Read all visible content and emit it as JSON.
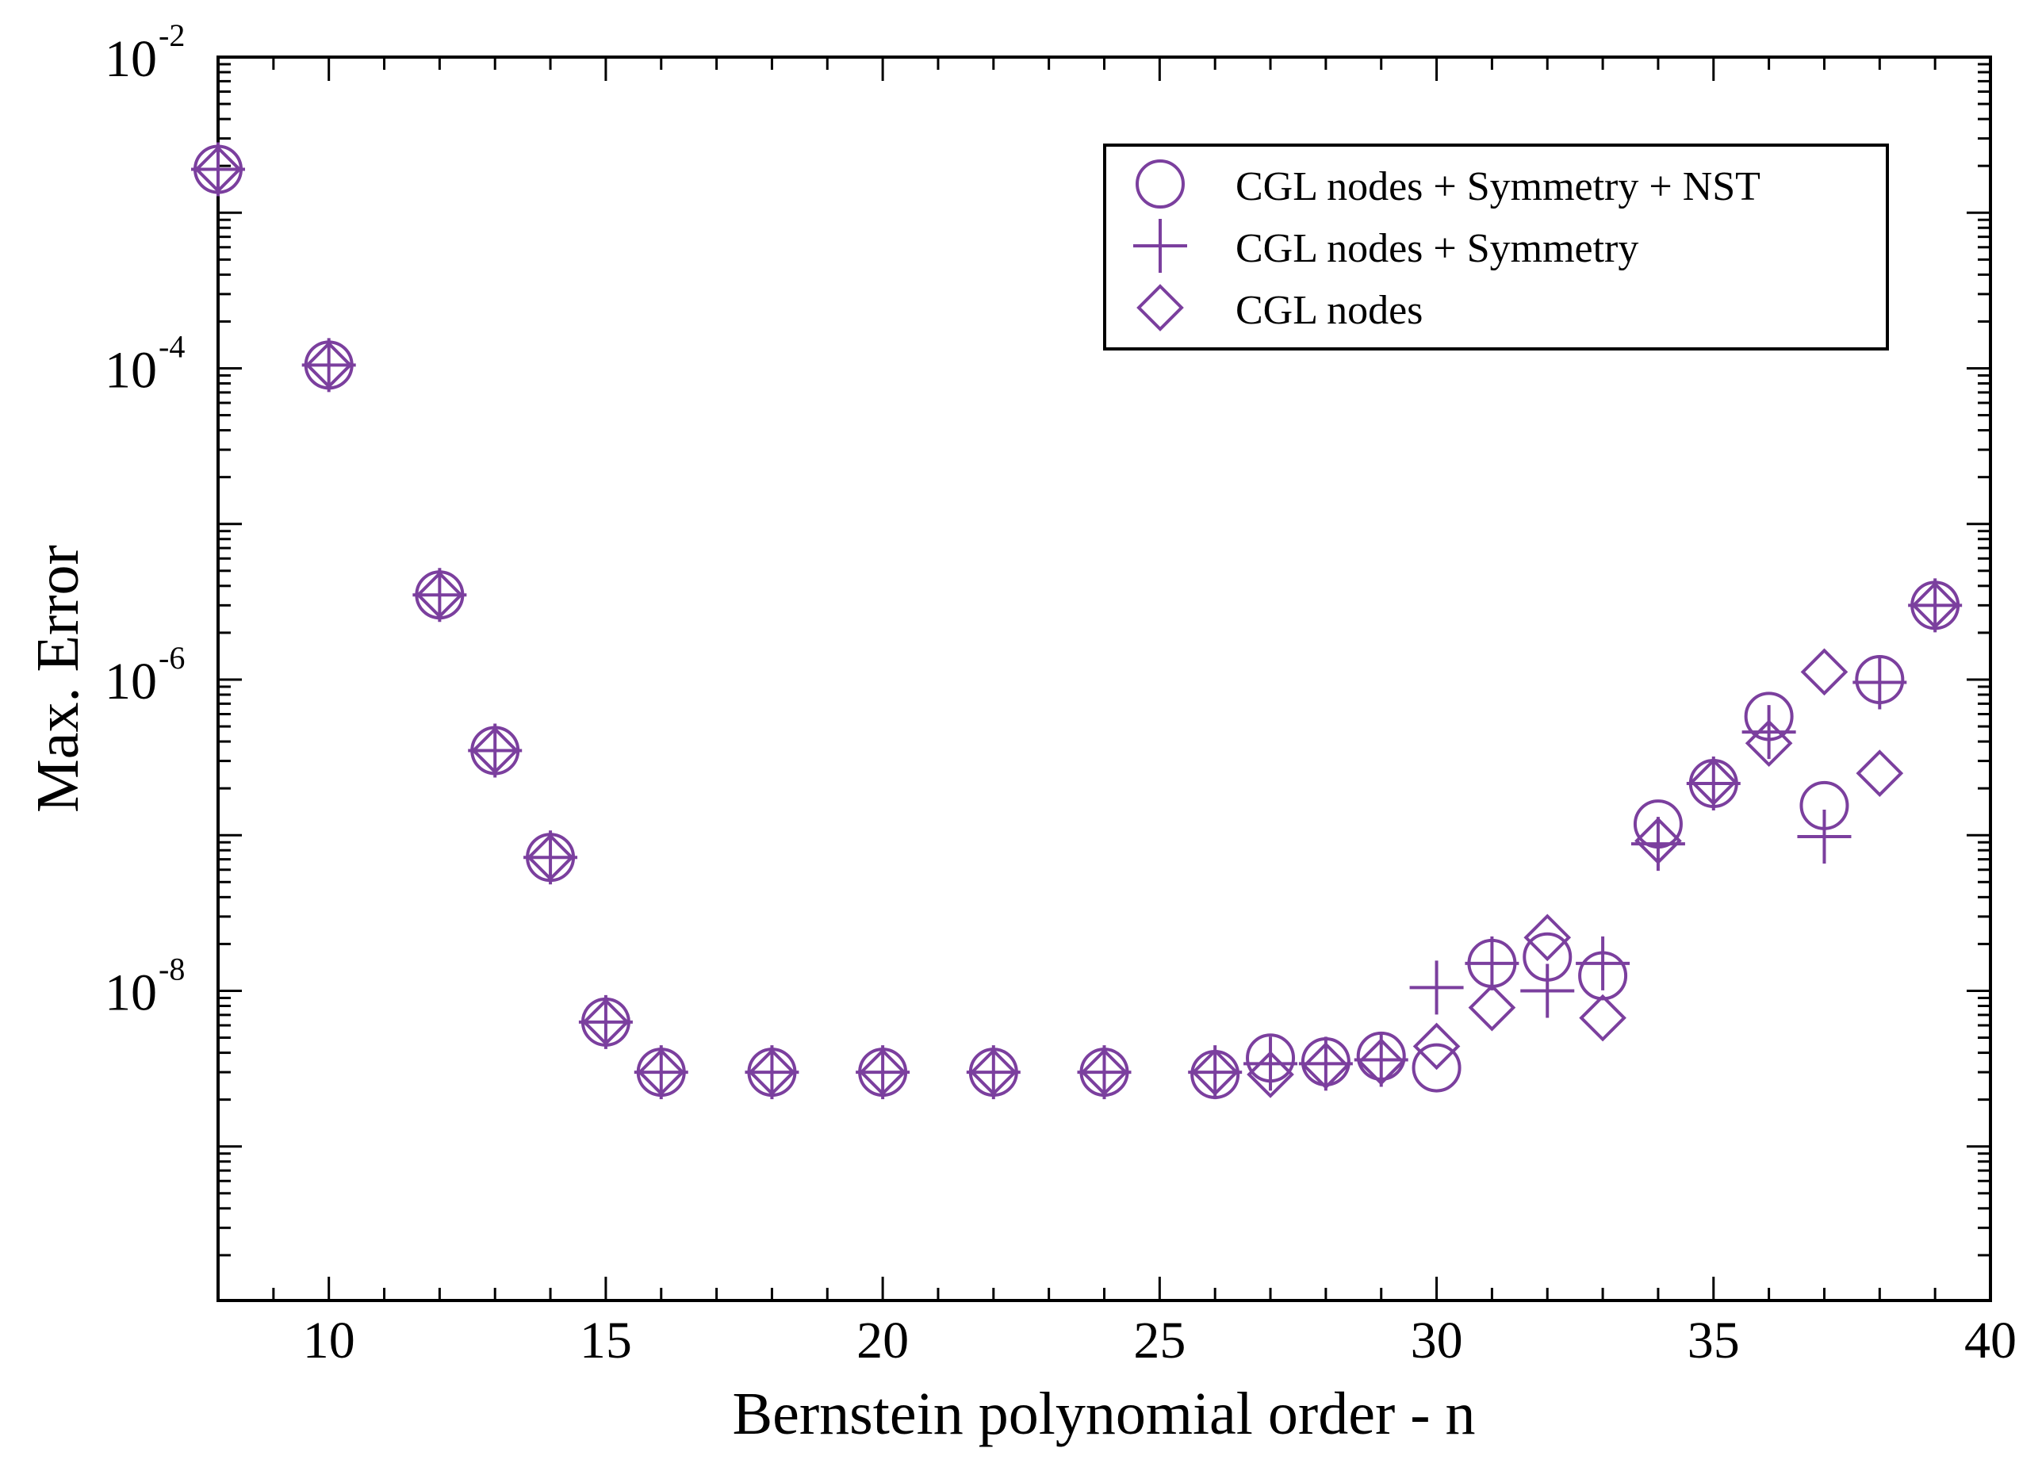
{
  "chart_data": {
    "type": "scatter",
    "title": "",
    "xlabel": "Bernstein polynomial order - n",
    "ylabel": "Max. Error",
    "xlim": [
      8,
      40
    ],
    "ylim_log10": [
      -9.99,
      -2
    ],
    "yscale": "log",
    "x_ticks": [
      10,
      15,
      20,
      25,
      30,
      35,
      40
    ],
    "x_tick_labels": [
      "10",
      "15",
      "20",
      "25",
      "30",
      "35",
      "40"
    ],
    "y_ticks": [
      {
        "base": "10",
        "exp": "-2"
      },
      {
        "base": "10",
        "exp": "-4"
      },
      {
        "base": "10",
        "exp": "-6"
      },
      {
        "base": "10",
        "exp": "-8"
      }
    ],
    "series_color": "#7b3f9e",
    "legend_position": "top-right",
    "series": [
      {
        "name": "CGL nodes + Symmetry + NST",
        "marker": "circle",
        "x": [
          8,
          10,
          12,
          13,
          14,
          15,
          16,
          18,
          20,
          22,
          24,
          26,
          27,
          28,
          29,
          30,
          31,
          32,
          33,
          34,
          35,
          36,
          37,
          38,
          39
        ],
        "y": [
          0.0019,
          0.000105,
          3.5e-06,
          3.5e-07,
          7.2e-08,
          6.3e-09,
          3e-09,
          3e-09,
          3e-09,
          3e-09,
          3e-09,
          2.9e-09,
          3.7e-09,
          3.5e-09,
          3.8e-09,
          3.2e-09,
          1.5e-08,
          1.65e-08,
          1.25e-08,
          1.18e-07,
          2.15e-07,
          5.8e-07,
          1.55e-07,
          1e-06,
          3e-06
        ]
      },
      {
        "name": "CGL nodes + Symmetry",
        "marker": "plus",
        "x": [
          8,
          10,
          12,
          13,
          14,
          15,
          16,
          18,
          20,
          22,
          24,
          26,
          27,
          28,
          29,
          30,
          31,
          32,
          33,
          34,
          35,
          36,
          37,
          38,
          39
        ],
        "y": [
          0.0019,
          0.000105,
          3.5e-06,
          3.5e-07,
          7.2e-08,
          6.3e-09,
          3e-09,
          3e-09,
          3e-09,
          3e-09,
          3e-09,
          3e-09,
          3.4e-09,
          3.4e-09,
          3.6e-09,
          1.05e-08,
          1.5e-08,
          1e-08,
          1.5e-08,
          8.8e-08,
          2.15e-07,
          4.6e-07,
          9.8e-08,
          9.6e-07,
          3e-06
        ]
      },
      {
        "name": "CGL nodes",
        "marker": "diamond",
        "x": [
          8,
          10,
          12,
          13,
          14,
          15,
          16,
          18,
          20,
          22,
          24,
          26,
          27,
          28,
          29,
          30,
          31,
          32,
          33,
          34,
          35,
          36,
          37,
          38,
          39
        ],
        "y": [
          0.0019,
          0.000105,
          3.5e-06,
          3.5e-07,
          7.2e-08,
          6.3e-09,
          3e-09,
          3e-09,
          3e-09,
          3e-09,
          3e-09,
          3e-09,
          2.9e-09,
          3.3e-09,
          3.5e-09,
          4.4e-09,
          7.8e-09,
          2.2e-08,
          6.7e-09,
          9.2e-08,
          2.2e-07,
          3.9e-07,
          1.12e-06,
          2.5e-07,
          3e-06
        ]
      }
    ]
  }
}
